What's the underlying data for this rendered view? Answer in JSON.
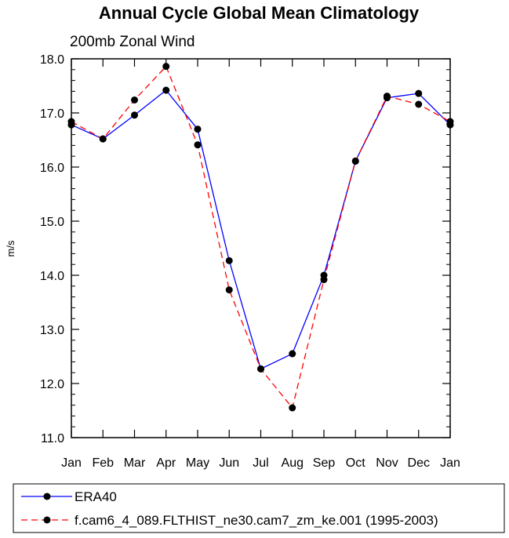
{
  "chart_data": {
    "type": "line",
    "title": "Annual Cycle Global Mean Climatology",
    "subtitle": "200mb Zonal Wind",
    "xlabel": "",
    "ylabel": "m/s",
    "categories": [
      "Jan",
      "Feb",
      "Mar",
      "Apr",
      "May",
      "Jun",
      "Jul",
      "Aug",
      "Sep",
      "Oct",
      "Nov",
      "Dec",
      "Jan"
    ],
    "ylim": [
      11.0,
      18.0
    ],
    "yticks": [
      "11.0",
      "12.0",
      "13.0",
      "14.0",
      "15.0",
      "16.0",
      "17.0",
      "18.0"
    ],
    "legend_position": "bottom",
    "series": [
      {
        "name": "ERA40",
        "color": "#0000ff",
        "style": "solid",
        "marker": "circle",
        "values": [
          16.78,
          16.52,
          16.96,
          17.42,
          16.7,
          14.27,
          12.27,
          12.55,
          14.0,
          16.11,
          17.28,
          17.36,
          16.78
        ]
      },
      {
        "name": "f.cam6_4_089.FLTHIST_ne30.cam7_zm_ke.001 (1995-2003)",
        "color": "#ff0000",
        "style": "dashed",
        "marker": "circle",
        "values": [
          16.84,
          16.52,
          17.24,
          17.86,
          16.41,
          13.73,
          12.27,
          11.55,
          13.92,
          16.11,
          17.31,
          17.16,
          16.84
        ]
      }
    ]
  }
}
